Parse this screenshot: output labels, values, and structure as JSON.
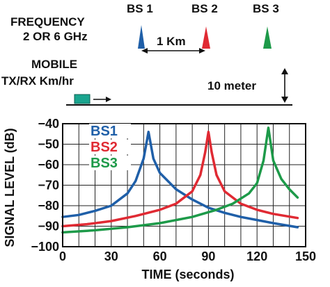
{
  "header": {
    "frequency_title": "FREQUENCY",
    "frequency_value": "2 OR 6 GHz",
    "mobile_title": "MOBILE",
    "mobile_speed": "TX/RX Km/hr",
    "distance_label": "1 Km",
    "height_label": "10 meter"
  },
  "stations": [
    {
      "label": "BS 1",
      "color": "#1f5fa8"
    },
    {
      "label": "BS 2",
      "color": "#e02a33"
    },
    {
      "label": "BS 3",
      "color": "#1d9a49"
    }
  ],
  "mobile_color": "#1aa58f",
  "chart_data": {
    "type": "line",
    "xlabel": "TIME (seconds)",
    "ylabel": "SIGNAL LEVEL (dB)",
    "xlim": [
      0,
      150
    ],
    "ylim": [
      -100,
      -40
    ],
    "xticks": [
      0,
      30,
      60,
      90,
      120,
      150
    ],
    "yticks": [
      -40,
      -50,
      -60,
      -70,
      -80,
      -90,
      -100
    ],
    "grid": true,
    "legend_position": "top-left",
    "series": [
      {
        "name": "BS1",
        "color": "#1f5fa8",
        "x": [
          0,
          10,
          20,
          30,
          40,
          45,
          50,
          53,
          56,
          60,
          70,
          80,
          90,
          100,
          110,
          120,
          130,
          145
        ],
        "y": [
          -85.5,
          -84.5,
          -82.5,
          -80,
          -74,
          -68,
          -57,
          -44,
          -57,
          -64,
          -72,
          -77,
          -81,
          -83.5,
          -85.5,
          -87,
          -88.5,
          -90.5
        ]
      },
      {
        "name": "BS2",
        "color": "#e02a33",
        "x": [
          0,
          15,
          30,
          45,
          60,
          70,
          80,
          85,
          88,
          90,
          92,
          95,
          100,
          110,
          120,
          130,
          145
        ],
        "y": [
          -90,
          -89,
          -87.5,
          -85,
          -82,
          -79,
          -73,
          -65,
          -54,
          -44,
          -54,
          -65,
          -73,
          -79,
          -82,
          -84,
          -86
        ]
      },
      {
        "name": "BS3",
        "color": "#1d9a49",
        "x": [
          0,
          20,
          40,
          60,
          80,
          95,
          105,
          115,
          120,
          124,
          127,
          130,
          135,
          140,
          145
        ],
        "y": [
          -93,
          -92,
          -90.5,
          -88.5,
          -85.5,
          -82,
          -79,
          -74,
          -69,
          -58,
          -42,
          -58,
          -67,
          -72,
          -76
        ]
      }
    ]
  }
}
